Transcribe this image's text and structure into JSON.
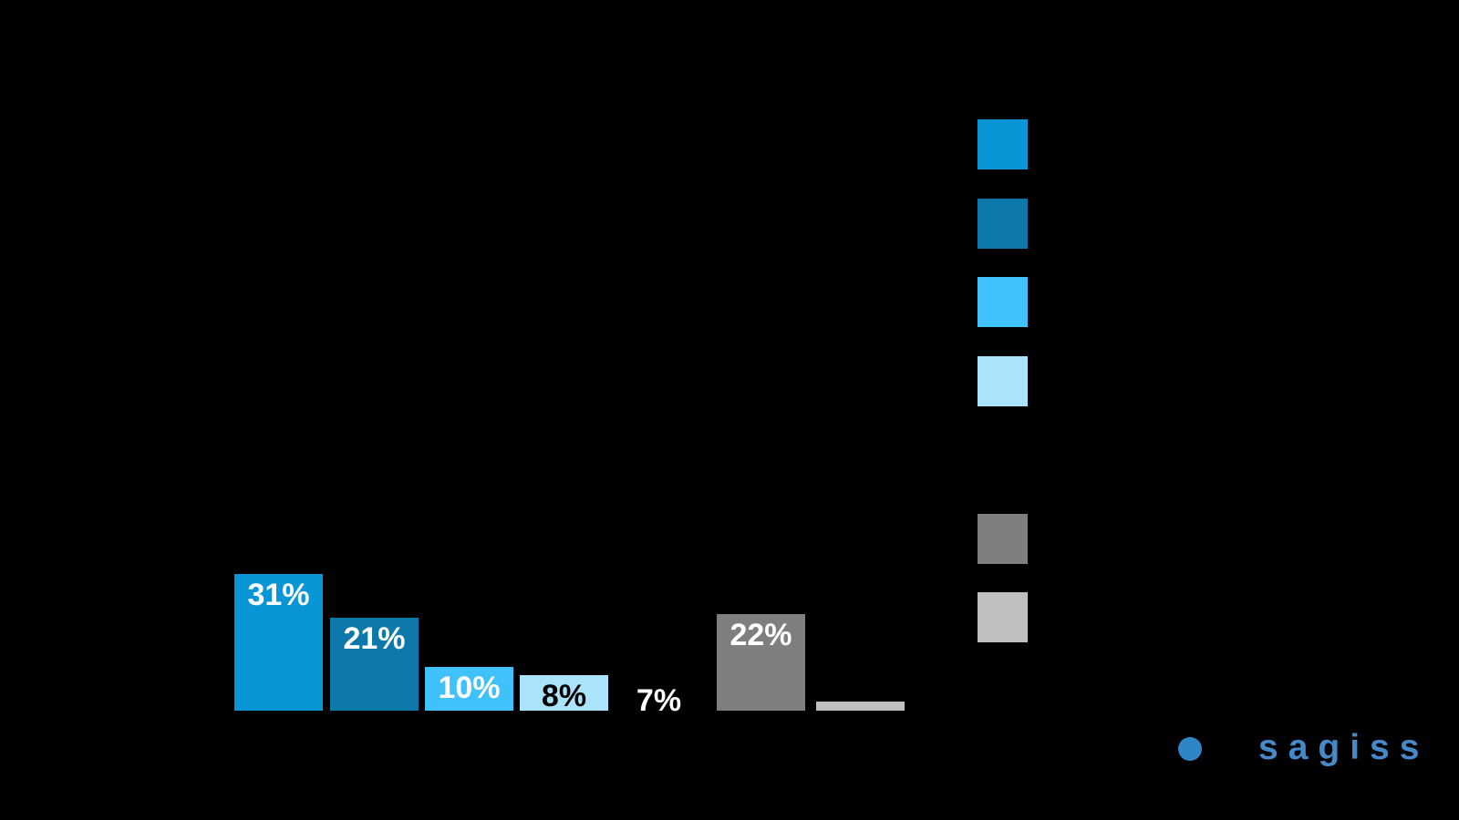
{
  "background_color": "#000000",
  "chart_data": {
    "type": "bar",
    "title": "",
    "categories": [
      "",
      "",
      "",
      "",
      "",
      "",
      ""
    ],
    "values": [
      31,
      21,
      10,
      8,
      7,
      22,
      2
    ],
    "value_labels": [
      "31%",
      "21%",
      "10%",
      "8%",
      "7%",
      "22%",
      ""
    ],
    "bar_colors": [
      "#0996d6",
      "#0d78aa",
      "#3fc2fc",
      "#abe3fc",
      "#000000",
      "#7f7f7f",
      "#bfbfbf"
    ],
    "value_label_colors": [
      "#ffffff",
      "#ffffff",
      "#ffffff",
      "#000000",
      "#ffffff",
      "#ffffff",
      "#ffffff"
    ],
    "axis_visible": false,
    "gridlines": false,
    "legend_position": "right",
    "legend_swatch_colors": [
      "#0996d6",
      "#0d78aa",
      "#3fc2fc",
      "#abe3fc",
      "#000000",
      "#7f7f7f",
      "#bfbfbf"
    ]
  },
  "logo": {
    "text": "sagiss",
    "text_color": "#4589c9",
    "dot_color": "#2f86c6"
  }
}
